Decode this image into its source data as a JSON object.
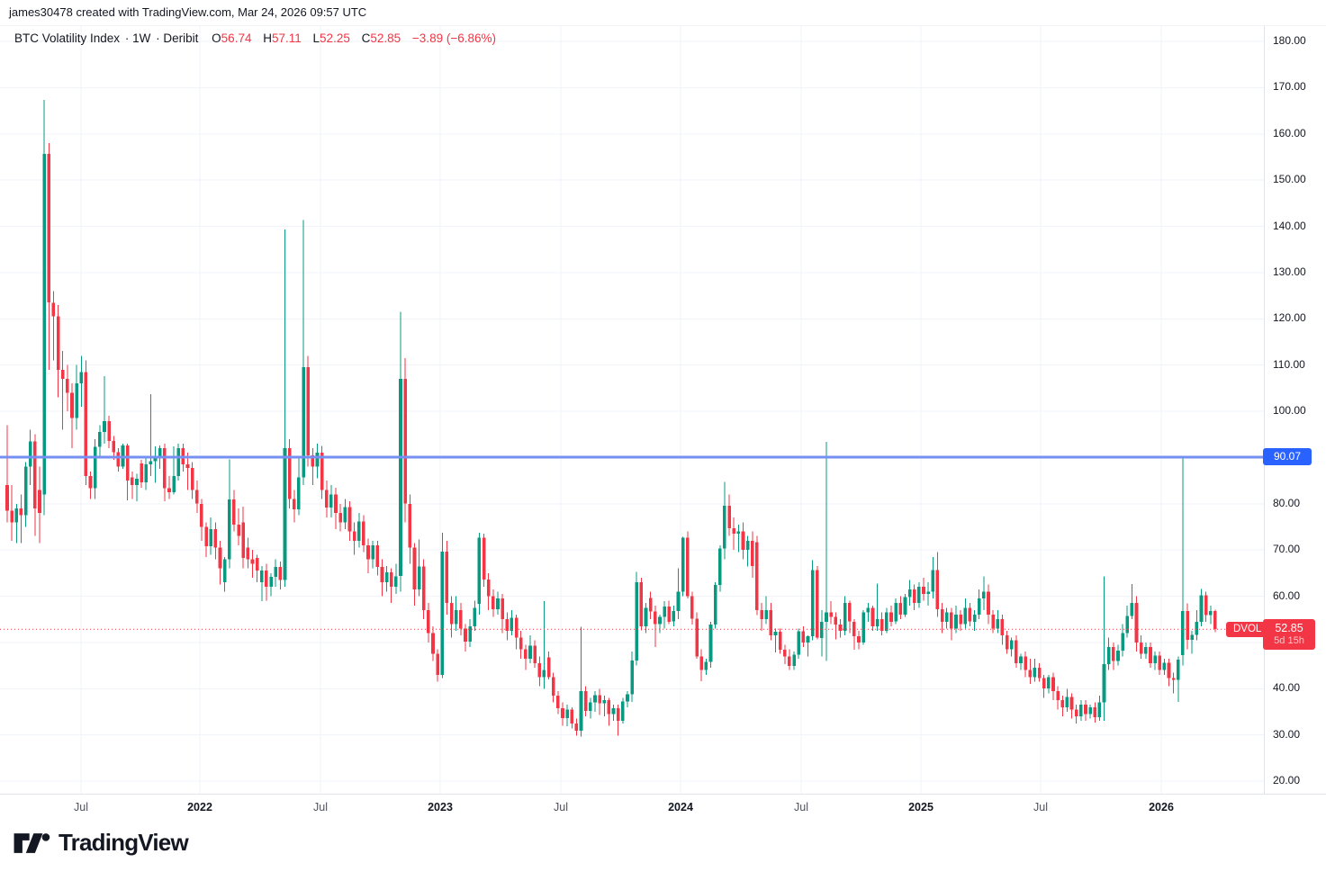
{
  "attribution": "james30478 created with TradingView.com, Mar 24, 2026 09:57 UTC",
  "legend": {
    "symbol": "BTC Volatility Index",
    "separator": "·",
    "timeframe": "1W",
    "exchange": "Deribit",
    "o_label": "O",
    "o_value": "56.74",
    "h_label": "H",
    "h_value": "57.11",
    "l_label": "L",
    "l_value": "52.25",
    "c_label": "C",
    "c_value": "52.85",
    "change": "−3.89 (−6.86%)"
  },
  "price_axis": {
    "line_label": "90.07",
    "last_price_label": "52.85",
    "countdown": "5d 15h"
  },
  "dvol_tag": "DVOL",
  "logo_text": "TradingView",
  "colors": {
    "up": "#089981",
    "down": "#f23645",
    "grid": "#f0f3fa",
    "blue_line": "#7590f2",
    "blue_label_bg": "#2962ff",
    "red": "#f23645",
    "axis_text": "#131722"
  },
  "chart_data": {
    "type": "candlestick",
    "title": "BTC Volatility Index",
    "timeframe": "1W",
    "exchange": "Deribit",
    "last_ohlc": {
      "open": 56.74,
      "high": 57.11,
      "low": 52.25,
      "close": 52.85,
      "change": -3.89,
      "change_pct": -6.86
    },
    "horizontal_line": 90.07,
    "current_price_line": 52.85,
    "countdown": "5d 15h",
    "y_ticks": [
      180,
      170,
      160,
      150,
      140,
      130,
      120,
      110,
      100,
      90.07,
      80,
      70,
      60,
      52.85,
      40,
      30,
      20
    ],
    "axis_range": [
      17.5,
      183.5
    ],
    "grid": true,
    "x_labels": [
      "Jul",
      "2022",
      "Jul",
      "2023",
      "Jul",
      "2024",
      "Jul",
      "2025",
      "Jul",
      "2026"
    ],
    "x_start": "Mar 2021",
    "x_end": "Mar 2026",
    "candles": [
      [
        84,
        97,
        76,
        78.5
      ],
      [
        78.5,
        84,
        72,
        76
      ],
      [
        76,
        80,
        71.5,
        79
      ],
      [
        79,
        82,
        71.5,
        77.5
      ],
      [
        77.5,
        89,
        75,
        88
      ],
      [
        88,
        96,
        84,
        93.5
      ],
      [
        93.5,
        95,
        73,
        79
      ],
      [
        83,
        88,
        71.5,
        78
      ],
      [
        82,
        167.3,
        77.5,
        155.7
      ],
      [
        155.7,
        158,
        109,
        123.5
      ],
      [
        123.5,
        126,
        111,
        120.5
      ],
      [
        120.5,
        123,
        103,
        109
      ],
      [
        109,
        113,
        96,
        107
      ],
      [
        107,
        110,
        100,
        104
      ],
      [
        104,
        106,
        92,
        98.5
      ],
      [
        98.5,
        110,
        96,
        106
      ],
      [
        106,
        112,
        101,
        108.5
      ],
      [
        108.5,
        111,
        84,
        86
      ],
      [
        86,
        87,
        81,
        83.4
      ],
      [
        83.4,
        94,
        81,
        92.3
      ],
      [
        92.3,
        97,
        90,
        95.5
      ],
      [
        95.5,
        107.6,
        93,
        97.9
      ],
      [
        97.9,
        99,
        92,
        93.6
      ],
      [
        93.6,
        94.6,
        89.5,
        91.1
      ],
      [
        91.1,
        92,
        87,
        88
      ],
      [
        88,
        93,
        87.5,
        92.6
      ],
      [
        92.6,
        93,
        80.7,
        85
      ],
      [
        85.7,
        87,
        81,
        84
      ],
      [
        84,
        86.5,
        80.5,
        85.4
      ],
      [
        88.7,
        89.5,
        83.5,
        84.6
      ],
      [
        84.6,
        90,
        83,
        88.5
      ],
      [
        88.5,
        103.7,
        86,
        89.2
      ],
      [
        89.2,
        92.4,
        84.5,
        90
      ],
      [
        90,
        92.6,
        87.5,
        92
      ],
      [
        92,
        93,
        80.5,
        83.4
      ],
      [
        83.4,
        86,
        81,
        82.5
      ],
      [
        82.5,
        92.4,
        82,
        86
      ],
      [
        86,
        93,
        85,
        92
      ],
      [
        92,
        93,
        87,
        88.5
      ],
      [
        88.5,
        91,
        83,
        87.7
      ],
      [
        87.7,
        89,
        81,
        83
      ],
      [
        83,
        85,
        78,
        80
      ],
      [
        80,
        81,
        72,
        75
      ],
      [
        75,
        76,
        68.5,
        70.8
      ],
      [
        70.8,
        77,
        69,
        74.5
      ],
      [
        74.5,
        76,
        68,
        70.5
      ],
      [
        70.5,
        72,
        62.5,
        66
      ],
      [
        63,
        68.5,
        61,
        68
      ],
      [
        68,
        89.6,
        66,
        80.9
      ],
      [
        80.9,
        83,
        74,
        75.5
      ],
      [
        75.5,
        79,
        71,
        73
      ],
      [
        76,
        79.4,
        66,
        68.3
      ],
      [
        70.5,
        72.7,
        66,
        68
      ],
      [
        68,
        70,
        64,
        67
      ],
      [
        68.3,
        69,
        63,
        65.6
      ],
      [
        63,
        66.5,
        58.9,
        65.5
      ],
      [
        65.5,
        67,
        59,
        62
      ],
      [
        62,
        65,
        60,
        64.2
      ],
      [
        64.2,
        68,
        62,
        66.3
      ],
      [
        66.3,
        67.5,
        61.5,
        63.5
      ],
      [
        63.5,
        139.3,
        62,
        92
      ],
      [
        92,
        94,
        79,
        81
      ],
      [
        81,
        83,
        76,
        78.8
      ],
      [
        78.8,
        90,
        77.5,
        85.7
      ],
      [
        85.7,
        141.4,
        84,
        109.5
      ],
      [
        109.5,
        112,
        88,
        90.5
      ],
      [
        90.5,
        92,
        84,
        88
      ],
      [
        88,
        93,
        85.5,
        91
      ],
      [
        91,
        92.5,
        81,
        83
      ],
      [
        83,
        85,
        77,
        79.2
      ],
      [
        79.2,
        84,
        77,
        82
      ],
      [
        82,
        83.5,
        74.5,
        78
      ],
      [
        78,
        80,
        74,
        76
      ],
      [
        76,
        81,
        74.5,
        79.3
      ],
      [
        79.3,
        80.5,
        72,
        74
      ],
      [
        74,
        76,
        69,
        72
      ],
      [
        72,
        78,
        70.5,
        76.2
      ],
      [
        76.2,
        77.5,
        69.5,
        71
      ],
      [
        71,
        72.5,
        65,
        68
      ],
      [
        68,
        72,
        66,
        71
      ],
      [
        71,
        72,
        64.5,
        66.3
      ],
      [
        66.3,
        68,
        60,
        63
      ],
      [
        63,
        66.5,
        61,
        65.2
      ],
      [
        65.2,
        66,
        58.5,
        62
      ],
      [
        62,
        67,
        60.5,
        64.3
      ],
      [
        64.4,
        121.5,
        61,
        107
      ],
      [
        107,
        111.5,
        76,
        80
      ],
      [
        80,
        82,
        67,
        70.5
      ],
      [
        70.5,
        71.5,
        58,
        61.5
      ],
      [
        61.5,
        72.3,
        60,
        66.4
      ],
      [
        66.4,
        68,
        55,
        57
      ],
      [
        57,
        58.5,
        50,
        52
      ],
      [
        52,
        53.5,
        46,
        47.5
      ],
      [
        47.5,
        48.5,
        41.5,
        43
      ],
      [
        43,
        73.7,
        42.3,
        69.6
      ],
      [
        69.6,
        72,
        56,
        58.5
      ],
      [
        58.5,
        60,
        51,
        54
      ],
      [
        54,
        60,
        52.5,
        57
      ],
      [
        57,
        58.5,
        51.5,
        53
      ],
      [
        53,
        54,
        48,
        50.2
      ],
      [
        50.2,
        55,
        49,
        53.5
      ],
      [
        53.5,
        59,
        52.5,
        57.5
      ],
      [
        58.4,
        73.7,
        56,
        72.7
      ],
      [
        72.7,
        73.5,
        62,
        63.6
      ],
      [
        63.6,
        65,
        57,
        60
      ],
      [
        60,
        61.5,
        55.5,
        57.2
      ],
      [
        57.2,
        61,
        56,
        59.5
      ],
      [
        59.5,
        60.5,
        52,
        55
      ],
      [
        55,
        56.5,
        50.5,
        52.5
      ],
      [
        52.5,
        57,
        51.5,
        55.3
      ],
      [
        55.3,
        56,
        48.5,
        51
      ],
      [
        51,
        52.5,
        46.5,
        48.5
      ],
      [
        48.5,
        49.5,
        44,
        46.5
      ],
      [
        46.5,
        51.5,
        45.5,
        49.3
      ],
      [
        49.3,
        50.5,
        44.5,
        45.5
      ],
      [
        45.5,
        47,
        40.5,
        42.5
      ],
      [
        42.5,
        58.9,
        40,
        44
      ],
      [
        46.8,
        48,
        42,
        42.5
      ],
      [
        42.5,
        43.5,
        37,
        38.5
      ],
      [
        38.5,
        39.5,
        34.5,
        35.8
      ],
      [
        35.8,
        37,
        32,
        33.6
      ],
      [
        33.6,
        36.5,
        31.9,
        35.5
      ],
      [
        35.5,
        36,
        31.4,
        32.5
      ],
      [
        32.5,
        33.5,
        29.8,
        30.9
      ],
      [
        30.9,
        53.4,
        29.6,
        39.5
      ],
      [
        39.5,
        40.5,
        34,
        35.2
      ],
      [
        35.2,
        38,
        33.5,
        37
      ],
      [
        37,
        39.5,
        35,
        38.6
      ],
      [
        38.6,
        40,
        34.3,
        36.8
      ],
      [
        36.8,
        38.5,
        34,
        37.5
      ],
      [
        37.5,
        38,
        32,
        34.5
      ],
      [
        34.5,
        36.5,
        33,
        35.8
      ],
      [
        35.8,
        36.5,
        29.8,
        33
      ],
      [
        33,
        38,
        32.5,
        37.2
      ],
      [
        37.2,
        39.5,
        36,
        38.8
      ],
      [
        38.8,
        48,
        37.1,
        46.1
      ],
      [
        46.1,
        65.3,
        45,
        63
      ],
      [
        63,
        64,
        52.6,
        53.5
      ],
      [
        53.5,
        58.5,
        52,
        57.5
      ],
      [
        59.6,
        61,
        55,
        56.7
      ],
      [
        56.7,
        58,
        49,
        54
      ],
      [
        54,
        56,
        52,
        55.5
      ],
      [
        55.5,
        58.9,
        53,
        57.8
      ],
      [
        57.8,
        59,
        54,
        54.5
      ],
      [
        54.5,
        58,
        53.5,
        56.8
      ],
      [
        56.8,
        66,
        55,
        61
      ],
      [
        61,
        72.8,
        60,
        72.7
      ],
      [
        72.7,
        74,
        59.5,
        60
      ],
      [
        60,
        61,
        53.9,
        55.1
      ],
      [
        55.1,
        56.5,
        46.5,
        47
      ],
      [
        47,
        48.5,
        41.6,
        44
      ],
      [
        44,
        46.5,
        43,
        45.8
      ],
      [
        45.8,
        54.5,
        44.5,
        53.9
      ],
      [
        53.9,
        63,
        53,
        62.4
      ],
      [
        62.4,
        71,
        61,
        70.3
      ],
      [
        70.3,
        84.7,
        68,
        79.6
      ],
      [
        79.6,
        82,
        73,
        74.7
      ],
      [
        74.7,
        77,
        70,
        73.5
      ],
      [
        73.5,
        75.5,
        69.5,
        74
      ],
      [
        74,
        76,
        68,
        70
      ],
      [
        70,
        73,
        66.4,
        72
      ],
      [
        72,
        74,
        64,
        66.5
      ],
      [
        71.7,
        73,
        55.9,
        57
      ],
      [
        57,
        58.5,
        52.5,
        55
      ],
      [
        55,
        60,
        54,
        57
      ],
      [
        57,
        58.5,
        50.5,
        51.5
      ],
      [
        51.5,
        53,
        47.8,
        52.3
      ],
      [
        52.3,
        53,
        47.5,
        48.4
      ],
      [
        48.4,
        49.5,
        45.3,
        47
      ],
      [
        47,
        48.5,
        44,
        44.9
      ],
      [
        44.9,
        48,
        44,
        47.3
      ],
      [
        47.3,
        53,
        46.5,
        52.4
      ],
      [
        52.4,
        53.5,
        49,
        50
      ],
      [
        50,
        51.5,
        47,
        51.3
      ],
      [
        51.3,
        67.8,
        50.5,
        65.6
      ],
      [
        65.6,
        66.5,
        50.7,
        51
      ],
      [
        51,
        57,
        47,
        54.5
      ],
      [
        54.5,
        93.4,
        46,
        56.5
      ],
      [
        56.5,
        58.9,
        54,
        55.5
      ],
      [
        55.5,
        56.5,
        50.7,
        53.9
      ],
      [
        53.9,
        55,
        51,
        52.5
      ],
      [
        52.5,
        60,
        51.5,
        58.5
      ],
      [
        58.5,
        59,
        52,
        54.5
      ],
      [
        54.5,
        55,
        48.4,
        51.3
      ],
      [
        51.3,
        52.5,
        48.5,
        50
      ],
      [
        50,
        57,
        49.5,
        56.5
      ],
      [
        56.5,
        58.5,
        54.5,
        57.5
      ],
      [
        57.5,
        58,
        52.5,
        53.5
      ],
      [
        53.5,
        62.7,
        52.5,
        55
      ],
      [
        55,
        56.5,
        51.5,
        52.5
      ],
      [
        52.5,
        57.5,
        52,
        56.5
      ],
      [
        56.5,
        58,
        53.5,
        54.5
      ],
      [
        54.5,
        59.5,
        54,
        58.5
      ],
      [
        58.5,
        60,
        55,
        56
      ],
      [
        56,
        60.5,
        55.5,
        59.8
      ],
      [
        59.8,
        63.5,
        58,
        61.5
      ],
      [
        61.5,
        62.5,
        57,
        58.5
      ],
      [
        58.5,
        63,
        57.5,
        62
      ],
      [
        62,
        64,
        59,
        60.5
      ],
      [
        60.5,
        63,
        58,
        61
      ],
      [
        61,
        68.5,
        59.5,
        65.6
      ],
      [
        65.6,
        69.5,
        55.5,
        57.2
      ],
      [
        57.2,
        58.5,
        52,
        54.5
      ],
      [
        54.5,
        57.5,
        53,
        56.5
      ],
      [
        56.5,
        57.5,
        50.5,
        53
      ],
      [
        53,
        58,
        52,
        56
      ],
      [
        56,
        57,
        52.5,
        54
      ],
      [
        54,
        59.5,
        53,
        57.5
      ],
      [
        57.5,
        58.5,
        53.5,
        54.5
      ],
      [
        54.5,
        57,
        52.5,
        56
      ],
      [
        56,
        61.5,
        55,
        59.5
      ],
      [
        59.5,
        64.3,
        57,
        61
      ],
      [
        61,
        62.5,
        54,
        56
      ],
      [
        56,
        57,
        52,
        53
      ],
      [
        53,
        57,
        52,
        55
      ],
      [
        55,
        56,
        49.5,
        51.5
      ],
      [
        51.5,
        52.5,
        47.5,
        48.5
      ],
      [
        48.5,
        51,
        47,
        50.5
      ],
      [
        50.5,
        51.5,
        44.5,
        45.5
      ],
      [
        45.5,
        47.5,
        44,
        47
      ],
      [
        47,
        48,
        42.5,
        44
      ],
      [
        44,
        46.5,
        41,
        42.5
      ],
      [
        42.5,
        46.5,
        41.5,
        44.5
      ],
      [
        44.5,
        45.5,
        41.5,
        42.3
      ],
      [
        42.3,
        43,
        38,
        40
      ],
      [
        40,
        43,
        39,
        42.5
      ],
      [
        42.5,
        43.5,
        37.5,
        39.5
      ],
      [
        39.5,
        40.5,
        35.5,
        37.5
      ],
      [
        37.5,
        38.5,
        34,
        36
      ],
      [
        36,
        40,
        35,
        38.2
      ],
      [
        38.2,
        39,
        33.5,
        35.5
      ],
      [
        35.5,
        36.5,
        32.5,
        34
      ],
      [
        34,
        37.5,
        33,
        36.5
      ],
      [
        36.5,
        37.5,
        33,
        34.5
      ],
      [
        34.5,
        36.5,
        33.5,
        36
      ],
      [
        36,
        37,
        32.7,
        33.8
      ],
      [
        33.8,
        38.5,
        33,
        37
      ],
      [
        37,
        64.3,
        33,
        45.3
      ],
      [
        45.3,
        51,
        44,
        49
      ],
      [
        49,
        50,
        44,
        46
      ],
      [
        46,
        49.5,
        45,
        48.2
      ],
      [
        48.2,
        54,
        47,
        52
      ],
      [
        52,
        58,
        51,
        55.7
      ],
      [
        55.7,
        62.6,
        55,
        58.5
      ],
      [
        58.5,
        60,
        48,
        50
      ],
      [
        50,
        51.5,
        46.5,
        47.5
      ],
      [
        47.5,
        50,
        46.5,
        49
      ],
      [
        49,
        50,
        44.5,
        45.5
      ],
      [
        45.5,
        48,
        44,
        47.2
      ],
      [
        47.2,
        48,
        43,
        44
      ],
      [
        44,
        46.5,
        43,
        45.6
      ],
      [
        45.6,
        46.5,
        40.5,
        42.3
      ],
      [
        42.3,
        43.5,
        39,
        41.9
      ],
      [
        41.9,
        47,
        37.1,
        46.3
      ],
      [
        47.2,
        89.9,
        45,
        56.8
      ],
      [
        56.8,
        58.4,
        48.5,
        50.6
      ],
      [
        50.6,
        52.5,
        47.5,
        51.6
      ],
      [
        51.6,
        57,
        50.5,
        54.5
      ],
      [
        54.5,
        61.6,
        53.5,
        60.2
      ],
      [
        60.2,
        61,
        54.5,
        55.9
      ],
      [
        55.9,
        58,
        54,
        56.74
      ],
      [
        56.74,
        57.11,
        52.25,
        52.85
      ]
    ]
  }
}
